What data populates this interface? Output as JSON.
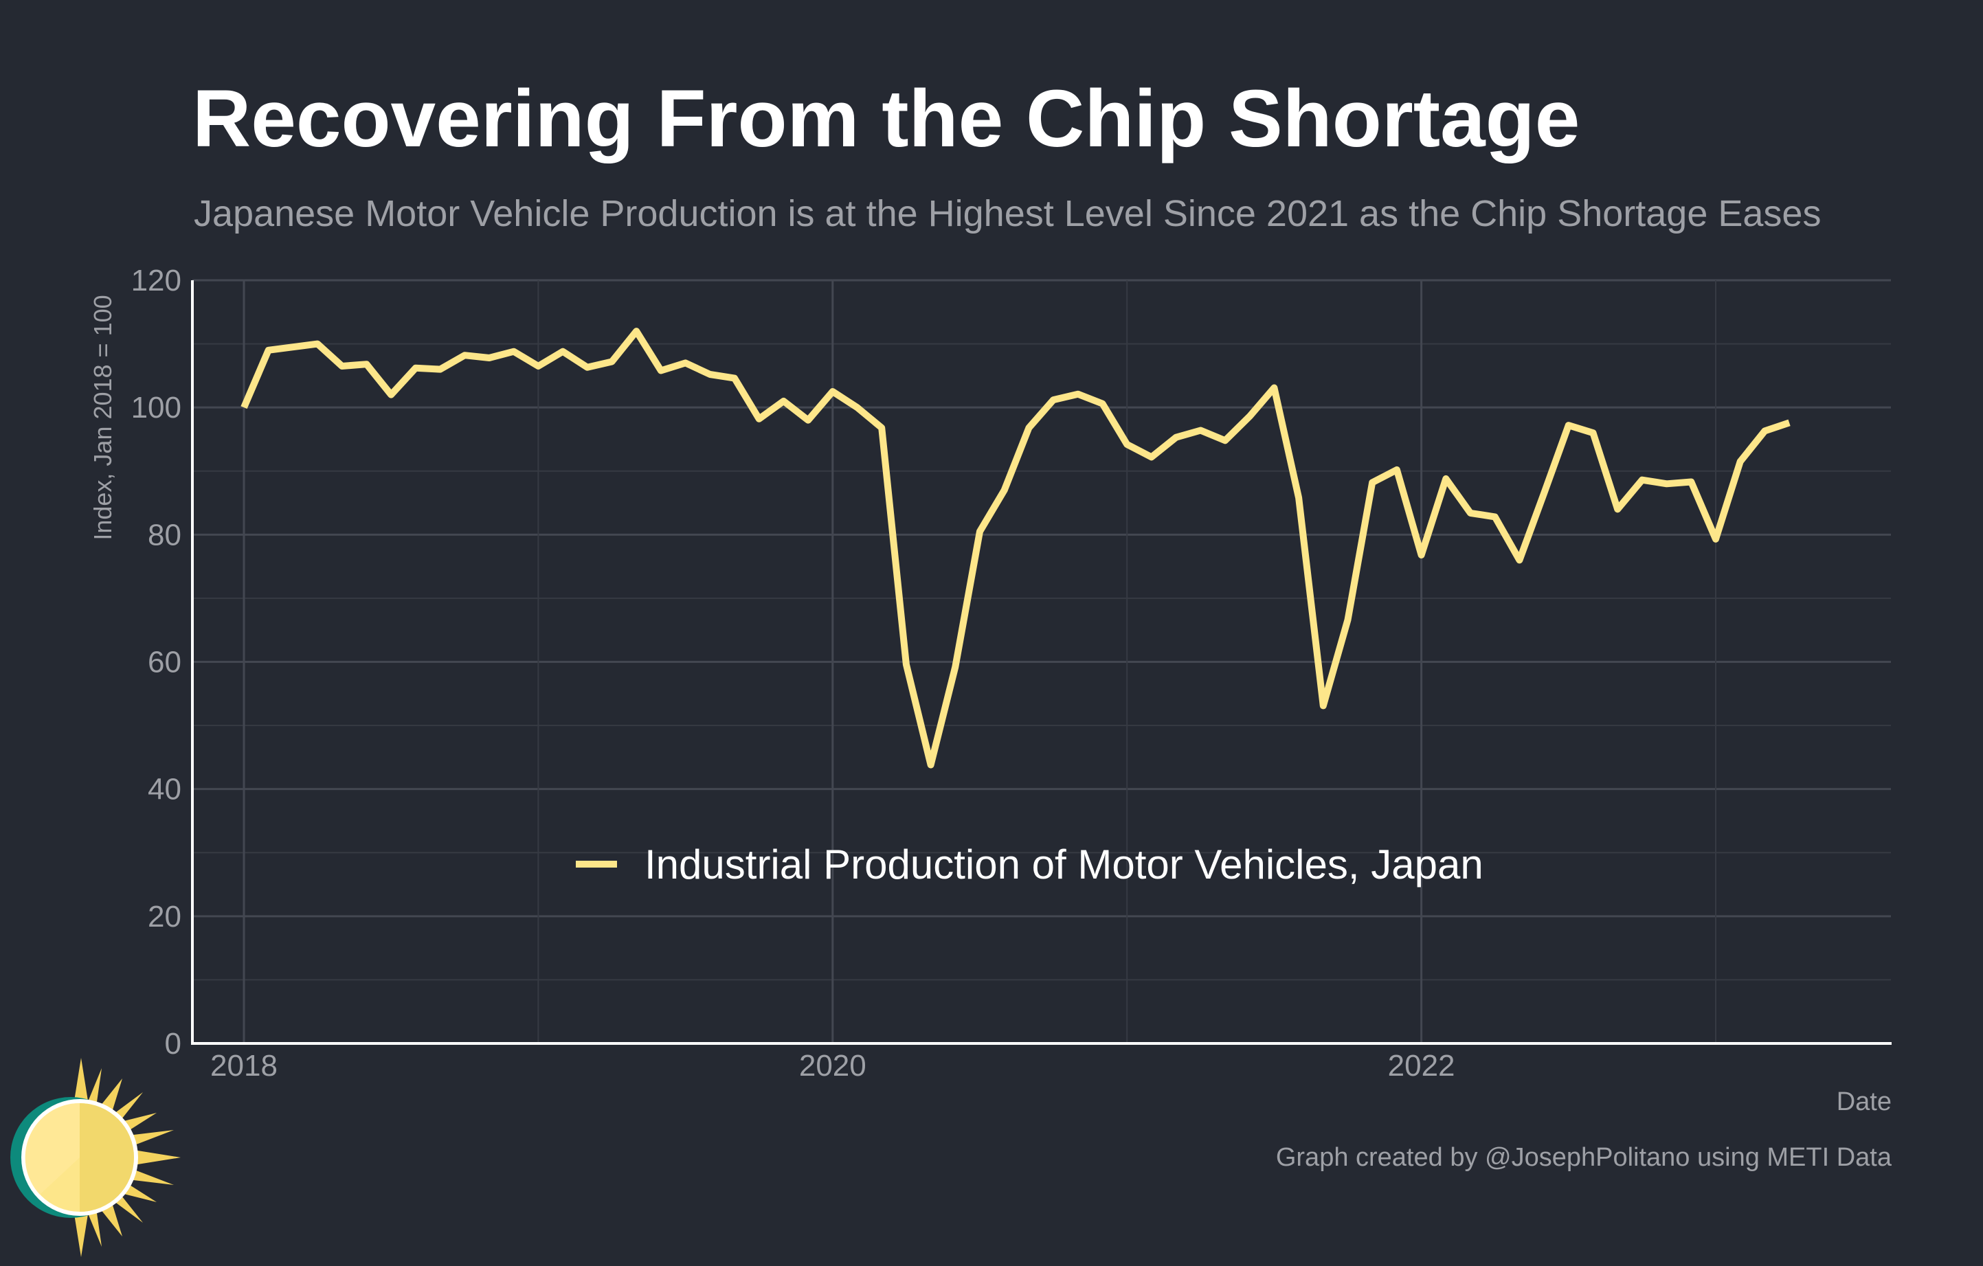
{
  "title": "Recovering From the Chip Shortage",
  "subtitle": "Japanese Motor Vehicle Production is at the Highest Level Since 2021 as the Chip Shortage Eases",
  "date_label": "Date",
  "credit": "Graph created by @JosephPolitano using METI Data",
  "colors": {
    "background": "#252932",
    "line": "#fde68a",
    "grid": "#3b3f48",
    "axis": "#ffffff",
    "muted_text": "#9ea0a6"
  },
  "logo": {
    "icon": "sun-icon"
  },
  "chart_data": {
    "type": "line",
    "title": "Recovering From the Chip Shortage",
    "subtitle": "Japanese Motor Vehicle Production is at the Highest Level Since 2021 as the Chip Shortage Eases",
    "xlabel": "Date",
    "ylabel": "Index, Jan 2018 = 100",
    "ylim": [
      0,
      120
    ],
    "yticks": [
      0,
      20,
      40,
      60,
      80,
      100,
      120
    ],
    "xlim": [
      "2017-09",
      "2023-09"
    ],
    "xticks": [
      "2018",
      "2020",
      "2022"
    ],
    "grid": true,
    "legend_position": "center",
    "x": [
      "2018-01",
      "2018-02",
      "2018-03",
      "2018-04",
      "2018-05",
      "2018-06",
      "2018-07",
      "2018-08",
      "2018-09",
      "2018-10",
      "2018-11",
      "2018-12",
      "2019-01",
      "2019-02",
      "2019-03",
      "2019-04",
      "2019-05",
      "2019-06",
      "2019-07",
      "2019-08",
      "2019-09",
      "2019-10",
      "2019-11",
      "2019-12",
      "2020-01",
      "2020-02",
      "2020-03",
      "2020-04",
      "2020-05",
      "2020-06",
      "2020-07",
      "2020-08",
      "2020-09",
      "2020-10",
      "2020-11",
      "2020-12",
      "2021-01",
      "2021-02",
      "2021-03",
      "2021-04",
      "2021-05",
      "2021-06",
      "2021-07",
      "2021-08",
      "2021-09",
      "2021-10",
      "2021-11",
      "2021-12",
      "2022-01",
      "2022-02",
      "2022-03",
      "2022-04",
      "2022-05",
      "2022-06",
      "2022-07",
      "2022-08",
      "2022-09",
      "2022-10",
      "2022-11",
      "2022-12",
      "2023-01",
      "2023-02",
      "2023-03",
      "2023-04"
    ],
    "series": [
      {
        "name": "Industrial Production of Motor Vehicles, Japan",
        "color": "#fde68a",
        "values": [
          100.0,
          109.0,
          109.5,
          110.0,
          106.5,
          106.8,
          102.0,
          106.2,
          106.0,
          108.2,
          107.8,
          108.8,
          106.5,
          108.8,
          106.3,
          107.2,
          112.0,
          105.8,
          107.0,
          105.2,
          104.6,
          98.2,
          101.0,
          98.0,
          102.5,
          100.0,
          96.8,
          59.6,
          43.8,
          59.2,
          80.5,
          87.0,
          96.8,
          101.2,
          102.1,
          100.6,
          94.2,
          92.2,
          95.3,
          96.4,
          94.8,
          98.6,
          103.1,
          85.8,
          53.1,
          66.6,
          88.2,
          90.2,
          76.8,
          88.8,
          83.4,
          82.8,
          76.0,
          86.5,
          97.2,
          96.0,
          84.0,
          88.6,
          88.0,
          88.3,
          79.3,
          91.5,
          96.3,
          97.6
        ]
      }
    ]
  }
}
